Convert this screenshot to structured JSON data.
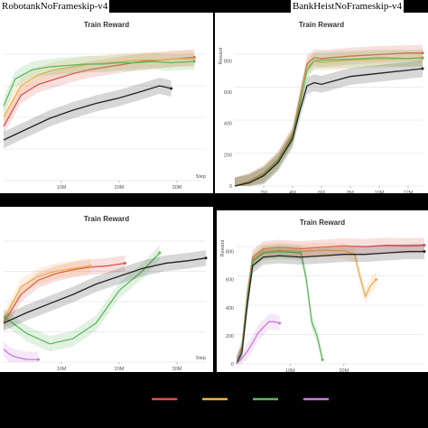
{
  "labels": {
    "left": "RobotankNoFrameskip-v4",
    "right": "BankHeistNoFrameskip-v4"
  },
  "colors": {
    "red": "#d9534f",
    "orange": "#f0ad4e",
    "green": "#5cb85c",
    "purple": "#c77dd6",
    "black": "#222222"
  },
  "chart_data": [
    {
      "type": "line",
      "title": "Train Reward",
      "xlabel": "Step",
      "ylabel": "",
      "xticks": [
        "10M",
        "20M",
        "30M"
      ],
      "yticks": [],
      "xlim": [
        0,
        35
      ],
      "ylim": [
        0,
        100
      ],
      "series": [
        {
          "color": "red",
          "x": [
            0,
            3,
            6,
            9,
            12,
            15,
            18,
            21,
            24,
            27,
            30,
            33
          ],
          "y": [
            40,
            63,
            71,
            75,
            79,
            82,
            84,
            86,
            88,
            89,
            90,
            91
          ]
        },
        {
          "color": "orange",
          "x": [
            0,
            3,
            6,
            9,
            12,
            15,
            18,
            21,
            24,
            27,
            30,
            33
          ],
          "y": [
            47,
            70,
            78,
            82,
            84,
            86,
            87,
            88,
            89,
            89,
            90,
            90
          ]
        },
        {
          "color": "green",
          "x": [
            0,
            2,
            5,
            8,
            11,
            14,
            17,
            20,
            23,
            26,
            29,
            33
          ],
          "y": [
            55,
            75,
            82,
            84,
            85,
            86,
            86,
            87,
            87,
            88,
            87,
            88
          ]
        },
        {
          "color": "black",
          "x": [
            0,
            4,
            8,
            12,
            16,
            20,
            24,
            27,
            29
          ],
          "y": [
            30,
            38,
            46,
            52,
            57,
            61,
            66,
            70,
            68
          ]
        }
      ]
    },
    {
      "type": "line",
      "title": "Train Reward",
      "xlabel": "",
      "ylabel": "Reward",
      "xticks": [
        "2M",
        "4M",
        "6M",
        "8M",
        "10M",
        "12M"
      ],
      "yticks": [
        "0",
        "200",
        "400",
        "600",
        "800"
      ],
      "xlim": [
        0,
        13
      ],
      "ylim": [
        0,
        900
      ],
      "series": [
        {
          "color": "red",
          "x": [
            0,
            1,
            2,
            3,
            4,
            4.5,
            5,
            5.5,
            6,
            8,
            10,
            12,
            13
          ],
          "y": [
            0,
            30,
            80,
            170,
            330,
            560,
            780,
            820,
            815,
            830,
            840,
            850,
            850
          ]
        },
        {
          "color": "orange",
          "x": [
            0,
            1,
            2,
            3,
            4,
            4.5,
            5,
            5.5,
            6,
            8,
            10,
            12,
            13
          ],
          "y": [
            0,
            25,
            75,
            165,
            320,
            540,
            760,
            800,
            790,
            805,
            810,
            815,
            815
          ]
        },
        {
          "color": "green",
          "x": [
            0,
            1,
            2,
            3,
            4,
            4.5,
            5,
            5.5,
            6,
            8,
            10,
            12,
            13
          ],
          "y": [
            0,
            20,
            70,
            160,
            310,
            520,
            740,
            800,
            805,
            810,
            820,
            815,
            820
          ]
        },
        {
          "color": "black",
          "x": [
            0,
            1,
            2,
            3,
            4,
            4.5,
            5,
            5.5,
            6,
            8,
            10,
            12,
            13
          ],
          "y": [
            0,
            20,
            65,
            150,
            300,
            480,
            640,
            660,
            650,
            700,
            720,
            740,
            750
          ]
        }
      ]
    },
    {
      "type": "line",
      "title": "Train Reward",
      "xlabel": "Step",
      "ylabel": "",
      "xticks": [
        "10M",
        "20M",
        "30M"
      ],
      "yticks": [],
      "xlim": [
        0,
        35
      ],
      "ylim": [
        0,
        100
      ],
      "series": [
        {
          "color": "red",
          "x": [
            0,
            3,
            6,
            9,
            12,
            15,
            18,
            21
          ],
          "y": [
            30,
            52,
            63,
            68,
            71,
            73,
            74,
            76
          ]
        },
        {
          "color": "orange",
          "x": [
            0,
            3,
            6,
            9,
            12,
            15
          ],
          "y": [
            32,
            58,
            66,
            70,
            72,
            74
          ]
        },
        {
          "color": "green",
          "x": [
            0,
            4,
            8,
            12,
            16,
            20,
            24,
            27
          ],
          "y": [
            35,
            22,
            14,
            18,
            30,
            55,
            70,
            84
          ]
        },
        {
          "color": "black",
          "x": [
            0,
            4,
            8,
            12,
            16,
            20,
            24,
            28,
            32,
            35
          ],
          "y": [
            30,
            38,
            45,
            52,
            60,
            66,
            72,
            76,
            78,
            80
          ]
        },
        {
          "color": "purple",
          "x": [
            0,
            1,
            2,
            3,
            4,
            5,
            6
          ],
          "y": [
            10,
            6,
            4,
            3,
            2,
            2,
            2
          ]
        }
      ]
    },
    {
      "type": "line",
      "title": "Train Reward",
      "xlabel": "",
      "ylabel": "Reward",
      "xticks": [
        "10M",
        "20M"
      ],
      "yticks": [
        "0",
        "200",
        "400",
        "600",
        "800"
      ],
      "xlim": [
        0,
        35
      ],
      "ylim": [
        0,
        900
      ],
      "series": [
        {
          "color": "red",
          "x": [
            0,
            1,
            2,
            3,
            5,
            8,
            12,
            16,
            20,
            24,
            28,
            32,
            35
          ],
          "y": [
            0,
            120,
            500,
            760,
            820,
            830,
            820,
            830,
            840,
            835,
            845,
            840,
            845
          ]
        },
        {
          "color": "orange",
          "x": [
            0,
            1,
            2,
            3,
            5,
            8,
            12,
            16,
            20,
            22,
            23,
            24,
            25,
            26
          ],
          "y": [
            0,
            110,
            480,
            740,
            800,
            810,
            800,
            810,
            805,
            780,
            620,
            480,
            560,
            600
          ]
        },
        {
          "color": "green",
          "x": [
            0,
            1,
            2,
            3,
            5,
            8,
            12,
            13,
            14,
            15,
            16
          ],
          "y": [
            0,
            100,
            470,
            730,
            790,
            800,
            790,
            600,
            300,
            200,
            30
          ]
        },
        {
          "color": "black",
          "x": [
            0,
            1,
            2,
            3,
            5,
            8,
            12,
            16,
            20,
            24,
            28,
            32,
            35
          ],
          "y": [
            0,
            80,
            420,
            700,
            760,
            770,
            760,
            770,
            780,
            780,
            790,
            800,
            800
          ]
        },
        {
          "color": "purple",
          "x": [
            0,
            1,
            2,
            3,
            4,
            5,
            6,
            7,
            8
          ],
          "y": [
            0,
            40,
            90,
            150,
            220,
            260,
            300,
            300,
            290
          ]
        }
      ]
    }
  ],
  "legend": {
    "colors": [
      "red",
      "orange",
      "green",
      "purple"
    ]
  }
}
